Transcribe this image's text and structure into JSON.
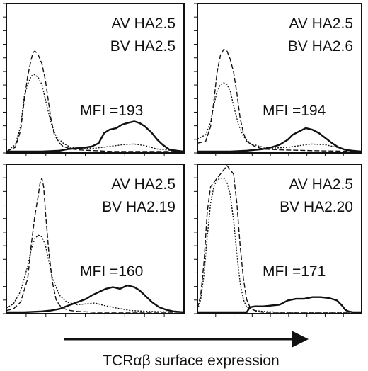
{
  "chart_data": {
    "type": "line",
    "xlabel": "TCRαβ surface expression",
    "panels": [
      {
        "av": "AV HA2.5",
        "bv": "BV HA2.5",
        "mfi": "MFI =193",
        "series": [
          {
            "style": "dashed",
            "x": [
              0,
              5,
              8,
              10,
              12,
              14,
              15,
              16,
              17,
              18,
              20,
              22,
              23,
              25,
              27,
              30,
              32,
              35,
              40,
              50,
              60,
              70,
              80,
              100
            ],
            "y": [
              0,
              5,
              25,
              60,
              90,
              110,
              118,
              120,
              118,
              115,
              105,
              85,
              70,
              40,
              20,
              10,
              6,
              4,
              2,
              1,
              0,
              0,
              0,
              0
            ]
          },
          {
            "style": "dotted",
            "x": [
              0,
              5,
              8,
              10,
              12,
              14,
              16,
              18,
              20,
              22,
              25,
              28,
              32,
              36,
              42,
              50,
              58,
              65,
              72,
              78,
              85,
              100
            ],
            "y": [
              0,
              8,
              30,
              65,
              80,
              90,
              92,
              88,
              80,
              62,
              35,
              18,
              10,
              5,
              4,
              4,
              6,
              8,
              9,
              7,
              3,
              0
            ]
          },
          {
            "style": "solid",
            "x": [
              0,
              10,
              20,
              30,
              35,
              40,
              45,
              48,
              52,
              55,
              58,
              62,
              65,
              68,
              72,
              75,
              78,
              82,
              85,
              88,
              92,
              96,
              100
            ],
            "y": [
              0,
              0,
              0,
              1,
              3,
              4,
              5,
              6,
              10,
              22,
              26,
              28,
              32,
              34,
              36,
              34,
              30,
              22,
              14,
              8,
              2,
              1,
              0
            ]
          }
        ]
      },
      {
        "av": "AV HA2.5",
        "bv": "BV HA2.6",
        "mfi": "MFI =194",
        "series": [
          {
            "style": "dashed",
            "x": [
              0,
              5,
              8,
              10,
              12,
              14,
              16,
              18,
              20,
              22,
              24,
              26,
              28,
              30,
              35,
              40,
              50,
              70,
              100
            ],
            "y": [
              10,
              12,
              30,
              60,
              95,
              115,
              122,
              120,
              110,
              95,
              70,
              40,
              22,
              12,
              6,
              3,
              2,
              1,
              0
            ]
          },
          {
            "style": "dotted",
            "x": [
              0,
              5,
              8,
              10,
              12,
              14,
              16,
              18,
              20,
              22,
              25,
              28,
              32,
              38,
              45,
              55,
              62,
              70,
              78,
              85,
              92,
              100
            ],
            "y": [
              15,
              20,
              35,
              55,
              72,
              80,
              82,
              80,
              72,
              55,
              32,
              18,
              10,
              6,
              4,
              5,
              7,
              9,
              8,
              5,
              2,
              0
            ]
          },
          {
            "style": "solid",
            "x": [
              0,
              10,
              20,
              30,
              40,
              45,
              50,
              55,
              58,
              62,
              66,
              70,
              74,
              78,
              82,
              86,
              90,
              94,
              100
            ],
            "y": [
              0,
              0,
              0,
              1,
              3,
              5,
              8,
              14,
              20,
              24,
              28,
              26,
              22,
              16,
              10,
              5,
              2,
              1,
              0
            ]
          }
        ]
      },
      {
        "av": "AV HA2.5",
        "bv": "BV HA2.19",
        "mfi": "MFI =160",
        "series": [
          {
            "style": "dashed",
            "x": [
              0,
              4,
              8,
              12,
              14,
              16,
              18,
              19,
              20,
              21,
              22,
              24,
              26,
              28,
              30,
              33,
              36,
              40,
              50,
              70,
              100
            ],
            "y": [
              2,
              4,
              12,
              40,
              80,
              115,
              140,
              155,
              160,
              150,
              120,
              70,
              35,
              15,
              8,
              4,
              2,
              1,
              0,
              0,
              0
            ]
          },
          {
            "style": "dotted",
            "x": [
              0,
              4,
              8,
              12,
              14,
              16,
              18,
              20,
              22,
              24,
              26,
              30,
              34,
              40,
              45,
              50,
              55,
              62,
              70,
              80,
              100
            ],
            "y": [
              5,
              10,
              25,
              55,
              75,
              88,
              92,
              90,
              80,
              60,
              40,
              20,
              12,
              9,
              10,
              11,
              8,
              5,
              2,
              1,
              0
            ]
          },
          {
            "style": "solid",
            "x": [
              0,
              10,
              20,
              25,
              30,
              35,
              40,
              45,
              48,
              52,
              56,
              60,
              64,
              68,
              72,
              75,
              78,
              82,
              86,
              90,
              94,
              100
            ],
            "y": [
              0,
              0,
              1,
              2,
              4,
              8,
              12,
              16,
              20,
              24,
              28,
              30,
              28,
              32,
              30,
              26,
              20,
              12,
              6,
              3,
              1,
              0
            ]
          }
        ]
      },
      {
        "av": "AV HA2.5",
        "bv": "BV HA2.20",
        "mfi": "MFI =171",
        "series": [
          {
            "style": "dashed",
            "x": [
              0,
              2,
              4,
              6,
              8,
              10,
              12,
              14,
              16,
              18,
              20,
              22,
              24,
              26,
              28,
              30,
              32,
              34,
              36,
              40,
              50,
              100
            ],
            "y": [
              5,
              20,
              60,
              120,
              150,
              155,
              160,
              165,
              170,
              175,
              170,
              165,
              130,
              80,
              40,
              15,
              6,
              3,
              1,
              0,
              0,
              0
            ]
          },
          {
            "style": "dotted",
            "x": [
              0,
              2,
              4,
              6,
              8,
              10,
              12,
              14,
              16,
              18,
              20,
              22,
              24,
              26,
              28,
              30,
              35,
              40,
              50,
              100
            ],
            "y": [
              3,
              15,
              45,
              90,
              130,
              150,
              158,
              160,
              160,
              155,
              140,
              110,
              70,
              35,
              15,
              6,
              2,
              1,
              0,
              0
            ]
          },
          {
            "style": "solid",
            "x": [
              0,
              20,
              30,
              32,
              35,
              40,
              45,
              50,
              55,
              60,
              65,
              70,
              75,
              80,
              85,
              88,
              90,
              92,
              95,
              100
            ],
            "y": [
              0,
              0,
              0,
              6,
              7,
              7,
              8,
              9,
              14,
              16,
              16,
              18,
              18,
              17,
              14,
              8,
              3,
              1,
              0,
              0
            ]
          }
        ]
      }
    ]
  }
}
